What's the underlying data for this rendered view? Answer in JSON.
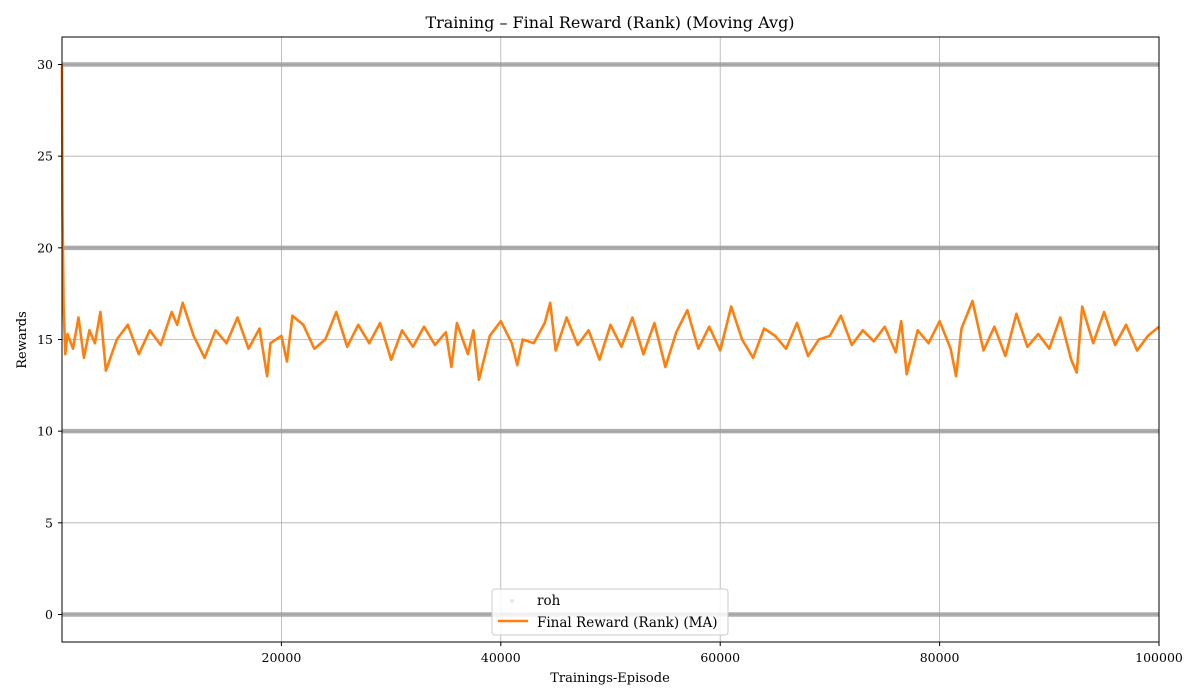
{
  "chart_data": {
    "type": "line",
    "title": "Training – Final Reward (Rank) (Moving Avg)",
    "xlabel": "Trainings-Episode",
    "ylabel": "Rewards",
    "xlim": [
      0,
      100000
    ],
    "ylim": [
      -1.5,
      31.5
    ],
    "xticks": [
      20000,
      40000,
      60000,
      80000,
      100000
    ],
    "yticks": [
      0,
      5,
      10,
      15,
      20,
      25,
      30
    ],
    "grid": true,
    "legend_placement": "lower center",
    "series": [
      {
        "name": "roh",
        "kind": "scatter",
        "values": [
          0,
          10,
          20,
          30
        ],
        "color": "#1f77b4",
        "note_values": "raw rewards take only the discrete values 0, 10, 20, 30 across all episodes 0–100000"
      },
      {
        "name": "Final Reward (Rank) (MA)",
        "kind": "line",
        "color": "#ff7f0e",
        "x": [
          0,
          50,
          150,
          300,
          500,
          1000,
          1500,
          2000,
          2500,
          3000,
          3500,
          4000,
          5000,
          6000,
          7000,
          8000,
          9000,
          10000,
          10500,
          11000,
          12000,
          13000,
          14000,
          15000,
          16000,
          17000,
          18000,
          18700,
          19000,
          20000,
          20500,
          21000,
          22000,
          23000,
          24000,
          25000,
          26000,
          27000,
          28000,
          29000,
          30000,
          31000,
          32000,
          33000,
          34000,
          35000,
          35500,
          36000,
          37000,
          37500,
          38000,
          39000,
          40000,
          41000,
          41500,
          42000,
          43000,
          44000,
          44500,
          45000,
          46000,
          47000,
          48000,
          49000,
          50000,
          51000,
          52000,
          53000,
          54000,
          55000,
          56000,
          57000,
          58000,
          59000,
          60000,
          61000,
          62000,
          63000,
          64000,
          65000,
          66000,
          67000,
          68000,
          69000,
          70000,
          71000,
          72000,
          73000,
          74000,
          75000,
          76000,
          76500,
          77000,
          78000,
          79000,
          80000,
          81000,
          81500,
          82000,
          83000,
          84000,
          85000,
          86000,
          87000,
          88000,
          89000,
          90000,
          91000,
          92000,
          92500,
          93000,
          94000,
          95000,
          96000,
          97000,
          98000,
          99000,
          100000
        ],
        "y": [
          30,
          22,
          16.8,
          14.2,
          15.3,
          14.5,
          16.2,
          14.0,
          15.5,
          14.8,
          16.5,
          13.3,
          15.0,
          15.8,
          14.2,
          15.5,
          14.7,
          16.5,
          15.8,
          17.0,
          15.2,
          14.0,
          15.5,
          14.8,
          16.2,
          14.5,
          15.6,
          13.0,
          14.8,
          15.2,
          13.8,
          16.3,
          15.8,
          14.5,
          15.0,
          16.5,
          14.6,
          15.8,
          14.8,
          15.9,
          13.9,
          15.5,
          14.6,
          15.7,
          14.7,
          15.4,
          13.5,
          15.9,
          14.2,
          15.5,
          12.8,
          15.2,
          16.0,
          14.8,
          13.6,
          15.0,
          14.8,
          15.9,
          17.0,
          14.4,
          16.2,
          14.7,
          15.5,
          13.9,
          15.8,
          14.6,
          16.2,
          14.2,
          15.9,
          13.5,
          15.4,
          16.6,
          14.5,
          15.7,
          14.4,
          16.8,
          15.0,
          14.0,
          15.6,
          15.2,
          14.5,
          15.9,
          14.1,
          15.0,
          15.2,
          16.3,
          14.7,
          15.5,
          14.9,
          15.7,
          14.3,
          16.0,
          13.1,
          15.5,
          14.8,
          16.0,
          14.5,
          13.0,
          15.6,
          17.1,
          14.4,
          15.7,
          14.1,
          16.4,
          14.6,
          15.3,
          14.5,
          16.2,
          13.9,
          13.2,
          16.8,
          14.8,
          16.5,
          14.7,
          15.8,
          14.4,
          15.2,
          15.7
        ]
      }
    ]
  }
}
